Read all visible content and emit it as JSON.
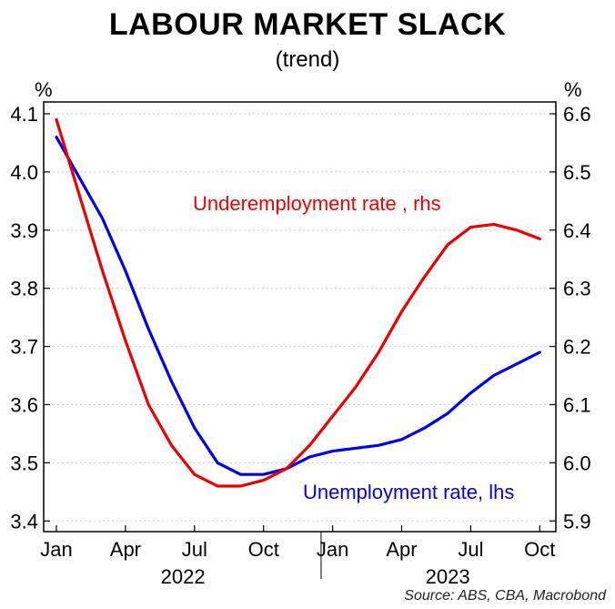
{
  "chart_data": {
    "type": "line",
    "title": "LABOUR MARKET SLACK",
    "subtitle": "(trend)",
    "left_unit": "%",
    "right_unit": "%",
    "source": "Source: ABS, CBA, Macrobond",
    "x_tick_labels": [
      "Jan",
      "Apr",
      "Jul",
      "Oct",
      "Jan",
      "Apr",
      "Jul",
      "Oct"
    ],
    "year_labels": [
      "2022",
      "2023"
    ],
    "y_left": {
      "lim": [
        3.38,
        4.12
      ],
      "ticks": [
        3.4,
        3.5,
        3.6,
        3.7,
        3.8,
        3.9,
        4.0,
        4.1
      ],
      "tick_labels": [
        "3.4",
        "3.5",
        "3.6",
        "3.7",
        "3.8",
        "3.9",
        "4.0",
        "4.1"
      ]
    },
    "y_right": {
      "lim": [
        5.88,
        6.62
      ],
      "ticks": [
        5.9,
        6.0,
        6.1,
        6.2,
        6.3,
        6.4,
        6.5,
        6.6
      ],
      "tick_labels": [
        "5.9",
        "6.0",
        "6.1",
        "6.2",
        "6.3",
        "6.4",
        "6.5",
        "6.6"
      ]
    },
    "x": [
      "2022-01",
      "2022-02",
      "2022-03",
      "2022-04",
      "2022-05",
      "2022-06",
      "2022-07",
      "2022-08",
      "2022-09",
      "2022-10",
      "2022-11",
      "2022-12",
      "2023-01",
      "2023-02",
      "2023-03",
      "2023-04",
      "2023-05",
      "2023-06",
      "2023-07",
      "2023-08",
      "2023-09",
      "2023-10"
    ],
    "series": [
      {
        "name": "Unemployment rate, lhs",
        "axis": "left",
        "color": "#0000ee",
        "values": [
          4.06,
          3.99,
          3.92,
          3.83,
          3.73,
          3.64,
          3.56,
          3.5,
          3.48,
          3.48,
          3.49,
          3.51,
          3.52,
          3.525,
          3.53,
          3.54,
          3.56,
          3.585,
          3.62,
          3.65,
          3.67,
          3.69
        ]
      },
      {
        "name": "Underemployment rate , rhs",
        "axis": "right",
        "color": "#ee0000",
        "values": [
          6.59,
          6.46,
          6.33,
          6.21,
          6.1,
          6.03,
          5.98,
          5.96,
          5.96,
          5.97,
          5.99,
          6.03,
          6.08,
          6.13,
          6.19,
          6.26,
          6.32,
          6.375,
          6.405,
          6.41,
          6.4,
          6.385
        ]
      }
    ],
    "grid": "horizontal dashed",
    "grid_on": true
  }
}
